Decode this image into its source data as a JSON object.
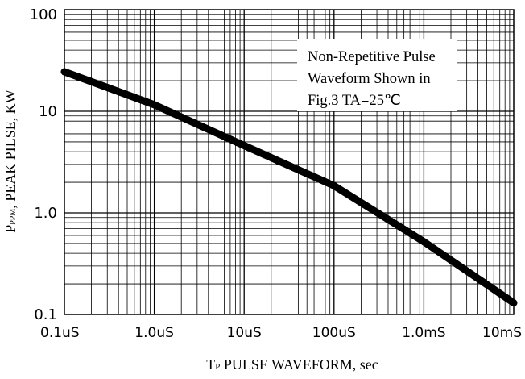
{
  "chart_data": {
    "type": "line",
    "title": "",
    "x_scale": "log",
    "y_scale": "log",
    "xlabel": {
      "main": "T",
      "sub": "P",
      "rest": " PULSE WAVEFORM, sec"
    },
    "ylabel": {
      "main": "P",
      "sub": "PPM",
      "rest": ", PEAK PILSE, KW"
    },
    "xlim": [
      1e-07,
      0.01
    ],
    "ylim": [
      0.1,
      100
    ],
    "x_tick_values": [
      1e-07,
      1e-06,
      1e-05,
      0.0001,
      0.001,
      0.01
    ],
    "x_tick_labels": [
      "0.1uS",
      "1.0uS",
      "10uS",
      "100uS",
      "1.0mS",
      "10mS"
    ],
    "y_tick_values": [
      0.1,
      1,
      10,
      100
    ],
    "y_tick_labels": [
      "0.1",
      "1.0",
      "10",
      "100"
    ],
    "grid": true,
    "series": [
      {
        "x": [
          1e-07,
          1e-06,
          1e-05,
          0.0001,
          0.001,
          0.01
        ],
        "y": [
          24.5,
          11.6,
          4.6,
          1.85,
          0.52,
          0.13
        ]
      }
    ],
    "annotation": {
      "lines": [
        "Non-Repetitive Pulse",
        "Waveform Shown in",
        "Fig.3 TA=25℃"
      ]
    },
    "line_color": "#000000",
    "grid_color": "#000000"
  }
}
